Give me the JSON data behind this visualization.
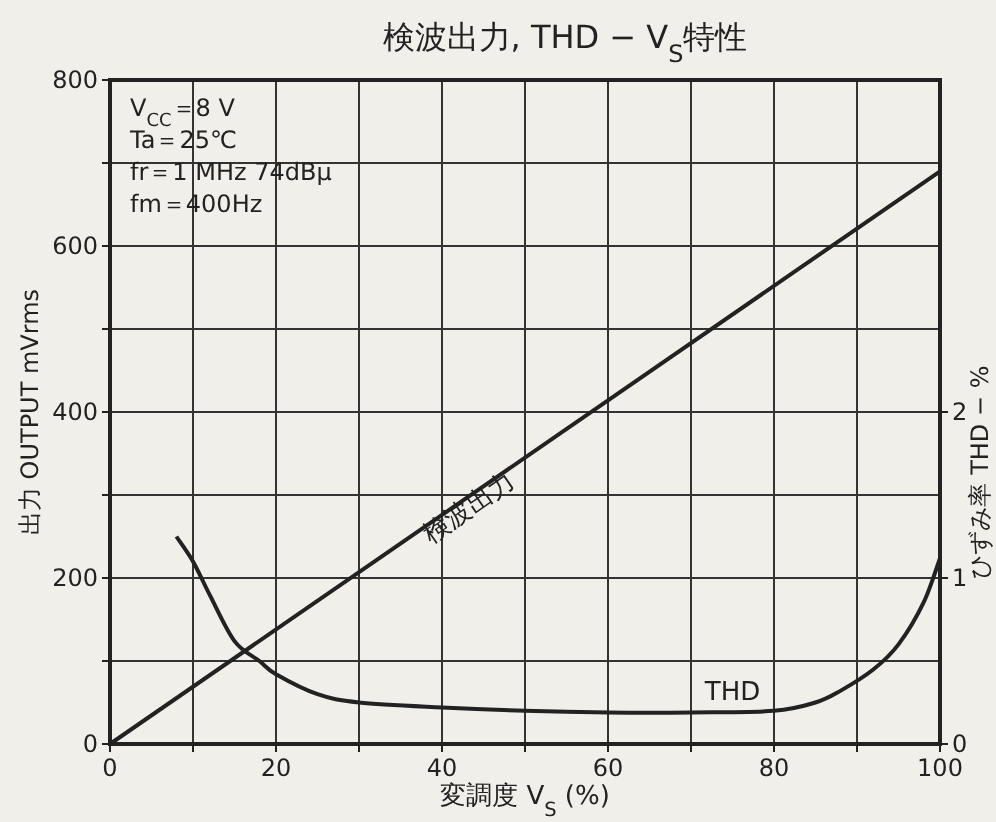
{
  "chart_data": {
    "type": "line",
    "title": "検波出力, THD − V$_{S}$特性",
    "xlabel": "変調度 V$_{S}$ (%)",
    "ylabel": "出力  OUTPUT  mVrms",
    "y2label": "ひずみ率  THD − %",
    "annotations": [
      "V$_{CC}$＝8 V",
      "Ta＝25℃",
      "fr＝1 MHz  74dBμ",
      "fm＝400Hz"
    ],
    "xlim": [
      0,
      100
    ],
    "ylim": [
      0,
      800
    ],
    "y2lim": [
      0,
      4
    ],
    "xticks": [
      0,
      {
        "value": 10,
        "label": null
      },
      20,
      {
        "value": 30,
        "label": null
      },
      40,
      {
        "value": 50,
        "label": null
      },
      60,
      {
        "value": 70,
        "label": null
      },
      80,
      {
        "value": 90,
        "label": null
      },
      100
    ],
    "yticks": [
      0,
      {
        "value": 100,
        "label": null
      },
      200,
      {
        "value": 300,
        "label": null
      },
      400,
      {
        "value": 500,
        "label": null
      },
      600,
      {
        "value": 700,
        "label": null
      },
      800
    ],
    "y2ticks": [
      0,
      1,
      2
    ],
    "grid": true,
    "legend": false,
    "marker": "none",
    "line_style": "solid",
    "series": [
      {
        "name": "検波出力",
        "color": "#222222",
        "x": [
          0,
          100
        ],
        "values": [
          0,
          690
        ]
      },
      {
        "name": "THD",
        "color": "#222222",
        "axis": "y2",
        "x": [
          8,
          10,
          12,
          15,
          18,
          20,
          25,
          30,
          40,
          50,
          60,
          70,
          80,
          85,
          88,
          92,
          95,
          98,
          100
        ],
        "values": [
          1.25,
          1.1,
          0.9,
          0.62,
          0.5,
          0.42,
          0.3,
          0.25,
          0.22,
          0.2,
          0.19,
          0.19,
          0.2,
          0.25,
          0.32,
          0.45,
          0.6,
          0.85,
          1.12
        ]
      }
    ]
  }
}
